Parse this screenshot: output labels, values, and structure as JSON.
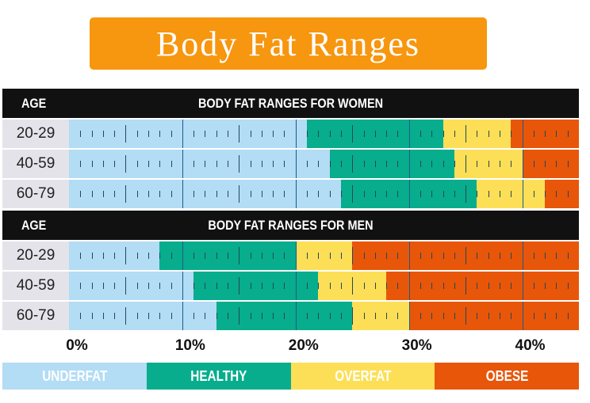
{
  "title": "Body Fat Ranges",
  "colors": {
    "underfat": "#b3dcf5",
    "healthy": "#07ad8c",
    "overfat": "#fcdf56",
    "obese": "#e8560a"
  },
  "chart_data": {
    "type": "bar",
    "orientation": "horizontal-stacked-ranges",
    "xlim": [
      0,
      45
    ],
    "x_ticks": [
      "0%",
      "10%",
      "20%",
      "30%",
      "40%"
    ],
    "x_tick_values": [
      0,
      10,
      20,
      30,
      40
    ],
    "legend": [
      "UNDERFAT",
      "HEALTHY",
      "OVERFAT",
      "OBESE"
    ],
    "legend_placement": "bottom",
    "panels": [
      {
        "age_header": "AGE",
        "title": "BODY FAT RANGES FOR WOMEN",
        "rows": [
          {
            "age": "20-29",
            "healthy_from": 21,
            "overfat_from": 33,
            "obese_from": 39
          },
          {
            "age": "40-59",
            "healthy_from": 23,
            "overfat_from": 34,
            "obese_from": 40
          },
          {
            "age": "60-79",
            "healthy_from": 24,
            "overfat_from": 36,
            "obese_from": 42
          }
        ]
      },
      {
        "age_header": "AGE",
        "title": "BODY FAT RANGES FOR MEN",
        "rows": [
          {
            "age": "20-29",
            "healthy_from": 8,
            "overfat_from": 20,
            "obese_from": 25
          },
          {
            "age": "40-59",
            "healthy_from": 11,
            "overfat_from": 22,
            "obese_from": 28
          },
          {
            "age": "60-79",
            "healthy_from": 13,
            "overfat_from": 25,
            "obese_from": 30
          }
        ]
      }
    ]
  }
}
